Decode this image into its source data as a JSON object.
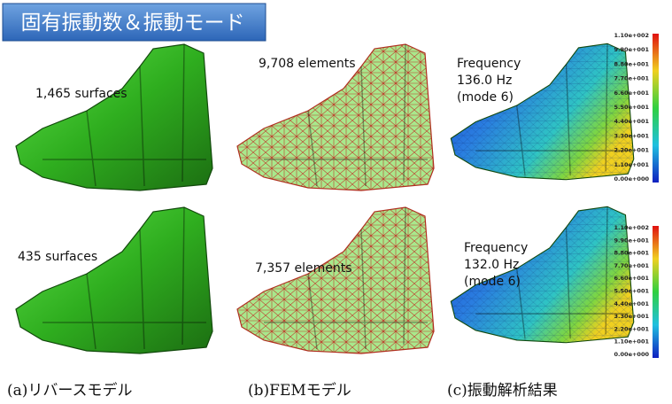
{
  "title": "固有振動数＆振動モード",
  "rows": [
    {
      "model_label": "1,465 surfaces",
      "mesh_label": "9,708 elements",
      "result_lines": [
        "Frequency",
        "136.0  Hz",
        "(mode 6)"
      ],
      "legend": [
        "1.10e+002",
        "9.90e+001",
        "8.80e+001",
        "7.70e+001",
        "6.60e+001",
        "5.50e+001",
        "4.40e+001",
        "3.30e+001",
        "2.20e+001",
        "1.10e+001",
        "0.00e+000"
      ]
    },
    {
      "model_label": "435 surfaces",
      "mesh_label": "7,357 elements",
      "result_lines": [
        "Frequency",
        "132.0  Hz",
        "(mode 6)"
      ],
      "legend": [
        "1.10e+002",
        "9.90e+001",
        "8.80e+001",
        "7.70e+001",
        "6.60e+001",
        "5.50e+001",
        "4.40e+001",
        "3.30e+001",
        "2.20e+001",
        "1.10e+001",
        "0.00e+000"
      ]
    }
  ],
  "captions": [
    "(a)リバースモデル",
    "(b)FEMモデル",
    "(c)振動解析結果"
  ]
}
